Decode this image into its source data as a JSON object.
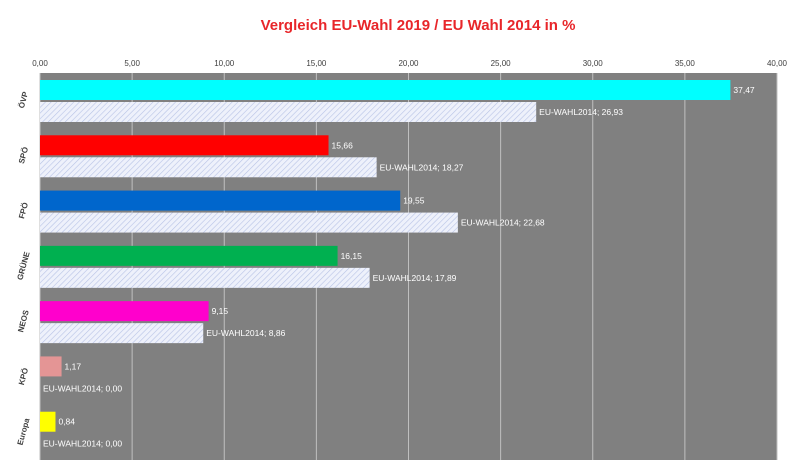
{
  "chart_data": {
    "type": "bar",
    "orientation": "horizontal",
    "title": "Vergleich EU-Wahl 2019 / EU Wahl 2014 in %",
    "xlim": [
      0,
      40
    ],
    "xticks": [
      0,
      5,
      10,
      15,
      20,
      25,
      30,
      35,
      40
    ],
    "xtick_labels": [
      "0,00",
      "5,00",
      "10,00",
      "15,00",
      "20,00",
      "25,00",
      "30,00",
      "35,00",
      "40,00"
    ],
    "x_axis_position": "top",
    "grid": true,
    "legend": "none",
    "categories": [
      "ÖVP",
      "SPÖ",
      "FPÖ",
      "GRÜNE",
      "NEOS",
      "KPÖ",
      "Europa"
    ],
    "series": [
      {
        "values": [
          37.47,
          15.66,
          19.55,
          16.15,
          9.15,
          1.17,
          0.84
        ],
        "labels": [
          "37,47",
          "15,66",
          "19,55",
          "16,15",
          "9,15",
          "1,17",
          "0,84"
        ],
        "colors": [
          "#00ffff",
          "#ff0000",
          "#0066cc",
          "#00b050",
          "#ff00cc",
          "#e49595",
          "#ffff00"
        ]
      },
      {
        "name": "EU-WAHL2014",
        "values": [
          26.93,
          18.27,
          22.68,
          17.89,
          8.86,
          0.0,
          0.0
        ],
        "labels": [
          "EU-WAHL2014; 26,93",
          "EU-WAHL2014; 18,27",
          "EU-WAHL2014; 22,68",
          "EU-WAHL2014; 17,89",
          "EU-WAHL2014; 8,86",
          "EU-WAHL2014; 0,00",
          "EU-WAHL2014; 0,00"
        ],
        "color": "#eef1fb",
        "pattern": "diagonal-hatch"
      }
    ],
    "plot_background": "#808080",
    "gridline_color": "#bfbfbf"
  }
}
